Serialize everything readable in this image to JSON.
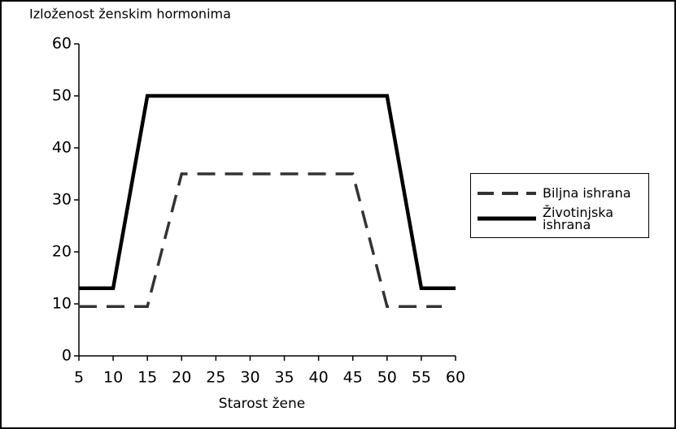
{
  "chart_data": {
    "type": "line",
    "title": "Izloženost ženskim hormonima",
    "xlabel": "Starost žene",
    "xlim": [
      5,
      60
    ],
    "xticks": [
      5,
      10,
      15,
      20,
      25,
      30,
      35,
      40,
      45,
      50,
      55,
      60
    ],
    "ylim": [
      0,
      60
    ],
    "yticks": [
      0,
      10,
      20,
      30,
      40,
      50,
      60
    ],
    "legend": "right",
    "series": [
      {
        "name": "Biljna ishrana",
        "color": "#333333",
        "style": "dashed",
        "x": [
          5,
          15,
          20,
          45,
          50,
          58
        ],
        "values": [
          9.5,
          9.5,
          35,
          35,
          9.5,
          9.5
        ]
      },
      {
        "name": "Životinjska ishrana",
        "color": "#000000",
        "style": "solid",
        "x": [
          5,
          10,
          15,
          50,
          55,
          60
        ],
        "values": [
          13,
          13,
          50,
          50,
          13,
          13
        ]
      }
    ]
  }
}
